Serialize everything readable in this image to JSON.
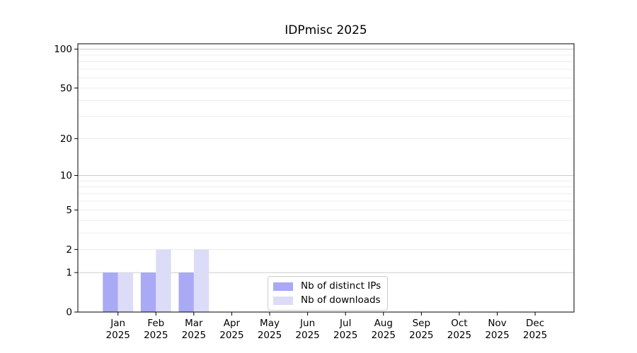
{
  "chart_data": {
    "type": "bar",
    "title": "IDPmisc 2025",
    "x": {
      "categories": [
        "Jan",
        "Feb",
        "Mar",
        "Apr",
        "May",
        "Jun",
        "Jul",
        "Aug",
        "Sep",
        "Oct",
        "Nov",
        "Dec"
      ],
      "year_label": "2025"
    },
    "series": [
      {
        "name": "Nb of distinct IPs",
        "color": "#a9a9f5",
        "values": [
          1,
          1,
          1,
          0,
          0,
          0,
          0,
          0,
          0,
          0,
          0,
          0
        ]
      },
      {
        "name": "Nb of downloads",
        "color": "#dcdcf8",
        "values": [
          1,
          2,
          2,
          0,
          0,
          0,
          0,
          0,
          0,
          0,
          0,
          0
        ]
      }
    ],
    "y_axis": {
      "scale": "log1p",
      "lim": [
        0,
        110
      ],
      "ticks": [
        100,
        50,
        20,
        10,
        5,
        2,
        1,
        0
      ],
      "major_gridlines": [
        1,
        10,
        100
      ],
      "minor_gridlines": [
        2,
        3,
        4,
        5,
        6,
        7,
        8,
        9,
        20,
        30,
        40,
        50,
        60,
        70,
        80,
        90
      ]
    },
    "legend": {
      "position": "inside-bottom-center"
    },
    "colors": {
      "axis": "#000000",
      "grid_major": "#cccccc",
      "grid_minor": "#ececec",
      "background": "#ffffff",
      "legend_border": "#cccccc",
      "text": "#000000"
    }
  }
}
